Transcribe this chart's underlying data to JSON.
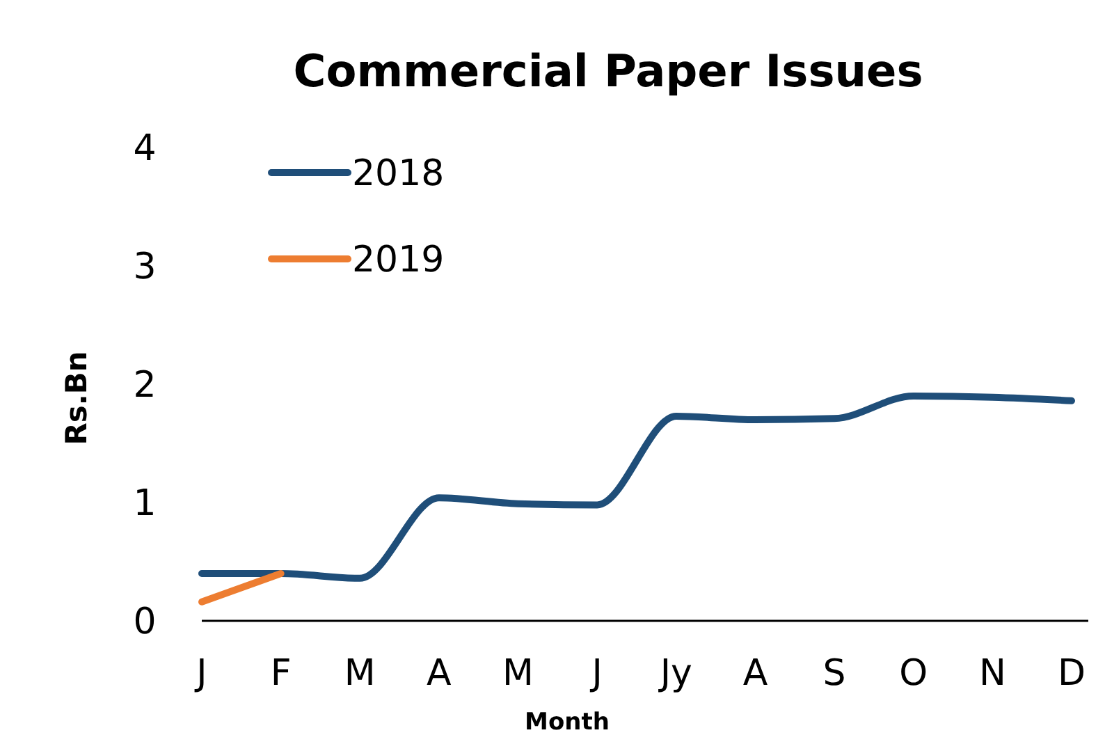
{
  "chart_data": {
    "type": "line",
    "title": "Commercial Paper Issues",
    "xlabel": "Month",
    "ylabel": "Rs.Bn",
    "categories": [
      "J",
      "F",
      "M",
      "A",
      "M",
      "J",
      "Jy",
      "A",
      "S",
      "O",
      "N",
      "D"
    ],
    "series": [
      {
        "name": "2018",
        "color": "#1f4e79",
        "values": [
          0.4,
          0.4,
          0.36,
          1.04,
          0.99,
          0.98,
          1.73,
          1.7,
          1.71,
          1.9,
          1.89,
          1.86
        ]
      },
      {
        "name": "2019",
        "color": "#ed7d31",
        "values": [
          0.16,
          0.4,
          null,
          null,
          null,
          null,
          null,
          null,
          null,
          null,
          null,
          null
        ]
      }
    ],
    "ylim": [
      0,
      4
    ],
    "yticks": [
      0,
      1,
      2,
      3,
      4
    ],
    "grid": false,
    "legend": "top left",
    "marker": "none",
    "line_style": "solid"
  }
}
